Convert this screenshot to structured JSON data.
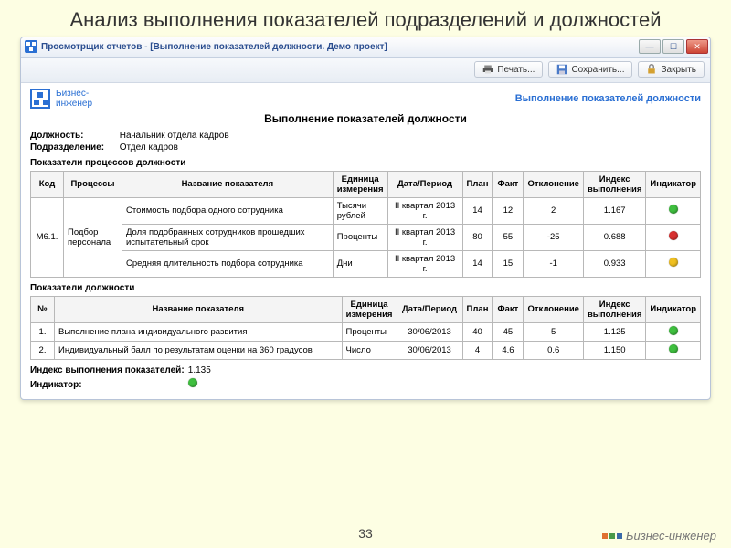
{
  "slide": {
    "title": "Анализ выполнения показателей подразделений и должностей",
    "page_number": "33"
  },
  "window": {
    "title": "Просмотрщик отчетов -   [Выполнение показателей должности. Демо проект]",
    "toolbar": {
      "print": "Печать...",
      "save": "Сохранить...",
      "close": "Закрыть"
    }
  },
  "document": {
    "logo_line1": "Бизнес-",
    "logo_line2": "инженер",
    "header_right": "Выполнение показателей должности",
    "title": "Выполнение показателей должности",
    "meta": {
      "position_label": "Должность:",
      "position_value": "Начальник отдела кадров",
      "department_label": "Подразделение:",
      "department_value": "Отдел кадров"
    },
    "section1_title": "Показатели процессов должности",
    "table1": {
      "cols": [
        "Код",
        "Процессы",
        "Название показателя",
        "Единица измерения",
        "Дата/Период",
        "План",
        "Факт",
        "Отклонение",
        "Индекс выполнения",
        "Индикатор"
      ],
      "rows": [
        {
          "code": "М6.1.",
          "process": "Подбор персонала",
          "name": "Стоимость подбора одного сотрудника",
          "unit": "Тысячи рублей",
          "period": "II квартал 2013 г.",
          "plan": "14",
          "fact": "12",
          "dev": "2",
          "index": "1.167",
          "ind_color": "#3fbf3f"
        },
        {
          "code": "",
          "process": "",
          "name": "Доля подобранных сотрудников прошедших испытательный срок",
          "unit": "Проценты",
          "period": "II квартал 2013 г.",
          "plan": "80",
          "fact": "55",
          "dev": "-25",
          "index": "0.688",
          "ind_color": "#d83030"
        },
        {
          "code": "",
          "process": "",
          "name": "Средняя длительность подбора сотрудника",
          "unit": "Дни",
          "period": "II квартал 2013 г.",
          "plan": "14",
          "fact": "15",
          "dev": "-1",
          "index": "0.933",
          "ind_color": "#f0c020"
        }
      ]
    },
    "section2_title": "Показатели должности",
    "table2": {
      "cols": [
        "№",
        "Название показателя",
        "Единица измерения",
        "Дата/Период",
        "План",
        "Факт",
        "Отклонение",
        "Индекс выполнения",
        "Индикатор"
      ],
      "rows": [
        {
          "n": "1.",
          "name": "Выполнение плана индивидуального развития",
          "unit": "Проценты",
          "period": "30/06/2013",
          "plan": "40",
          "fact": "45",
          "dev": "5",
          "index": "1.125",
          "ind_color": "#3fbf3f"
        },
        {
          "n": "2.",
          "name": "Индивидуальный балл по результатам оценки на 360 градусов",
          "unit": "Число",
          "period": "30/06/2013",
          "plan": "4",
          "fact": "4.6",
          "dev": "0.6",
          "index": "1.150",
          "ind_color": "#3fbf3f"
        }
      ]
    },
    "summary": {
      "idx_label": "Индекс выполнения показателей:",
      "idx_value": "1.135",
      "ind_label": "Индикатор:",
      "ind_color": "#3fbf3f"
    }
  },
  "footer": {
    "brand": "Бизнес-инженер",
    "dot_colors": [
      "#e07030",
      "#4a9a4a",
      "#3a6aa8"
    ]
  },
  "colors": {
    "accent": "#2a6fd3",
    "bg": "#fdfee3"
  },
  "col_widths": {
    "t1": [
      "36px",
      "64px",
      "auto",
      "58px",
      "82px",
      "32px",
      "34px",
      "60px",
      "64px",
      "54px"
    ],
    "t2": [
      "26px",
      "auto",
      "60px",
      "72px",
      "32px",
      "34px",
      "60px",
      "64px",
      "54px"
    ]
  }
}
